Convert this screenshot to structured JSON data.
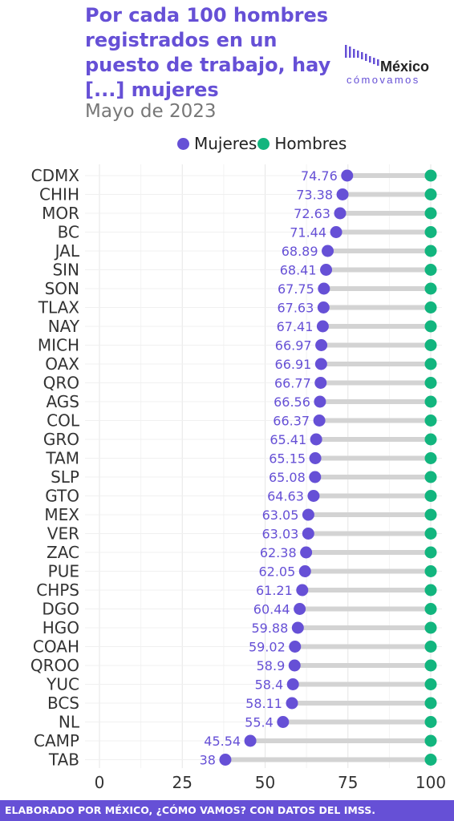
{
  "title": "Por cada 100 hombres registrados en un puesto de trabajo, hay [...] mujeres",
  "subtitle": "Mayo de 2023",
  "logo": {
    "top": "México",
    "bottom": "cómovamos"
  },
  "footer": "ELABORADO POR MÉXICO, ¿CÓMO VAMOS? CON DATOS DEL IMSS.",
  "colors": {
    "mujeres": "#6650d6",
    "hombres": "#12b57e",
    "bar": "#d3d3d3",
    "accent": "#6650d6"
  },
  "chart_data": {
    "type": "dumbbell",
    "title": "Por cada 100 hombres registrados en un puesto de trabajo, hay [...] mujeres",
    "subtitle": "Mayo de 2023",
    "xlim": [
      0,
      100
    ],
    "x_ticks": [
      "0",
      "25",
      "50",
      "75",
      "100"
    ],
    "legend_position": "top",
    "grid": true,
    "categories": [
      "CDMX",
      "CHIH",
      "MOR",
      "BC",
      "JAL",
      "SIN",
      "SON",
      "TLAX",
      "NAY",
      "MICH",
      "OAX",
      "QRO",
      "AGS",
      "COL",
      "GRO",
      "TAM",
      "SLP",
      "GTO",
      "MEX",
      "VER",
      "ZAC",
      "PUE",
      "CHPS",
      "DGO",
      "HGO",
      "COAH",
      "QROO",
      "YUC",
      "BCS",
      "NL",
      "CAMP",
      "TAB"
    ],
    "series": [
      {
        "name": "Mujeres",
        "values": [
          74.76,
          73.38,
          72.63,
          71.44,
          68.89,
          68.41,
          67.75,
          67.63,
          67.41,
          66.97,
          66.91,
          66.77,
          66.56,
          66.37,
          65.41,
          65.15,
          65.08,
          64.63,
          63.05,
          63.03,
          62.38,
          62.05,
          61.21,
          60.44,
          59.88,
          59.02,
          58.9,
          58.4,
          58.11,
          55.4,
          45.54,
          38
        ],
        "labels": [
          "74.76",
          "73.38",
          "72.63",
          "71.44",
          "68.89",
          "68.41",
          "67.75",
          "67.63",
          "67.41",
          "66.97",
          "66.91",
          "66.77",
          "66.56",
          "66.37",
          "65.41",
          "65.15",
          "65.08",
          "64.63",
          "63.05",
          "63.03",
          "62.38",
          "62.05",
          "61.21",
          "60.44",
          "59.88",
          "59.02",
          "58.9",
          "58.4",
          "58.11",
          "55.4",
          "45.54",
          "38"
        ]
      },
      {
        "name": "Hombres",
        "values": [
          100,
          100,
          100,
          100,
          100,
          100,
          100,
          100,
          100,
          100,
          100,
          100,
          100,
          100,
          100,
          100,
          100,
          100,
          100,
          100,
          100,
          100,
          100,
          100,
          100,
          100,
          100,
          100,
          100,
          100,
          100,
          100
        ]
      }
    ]
  }
}
